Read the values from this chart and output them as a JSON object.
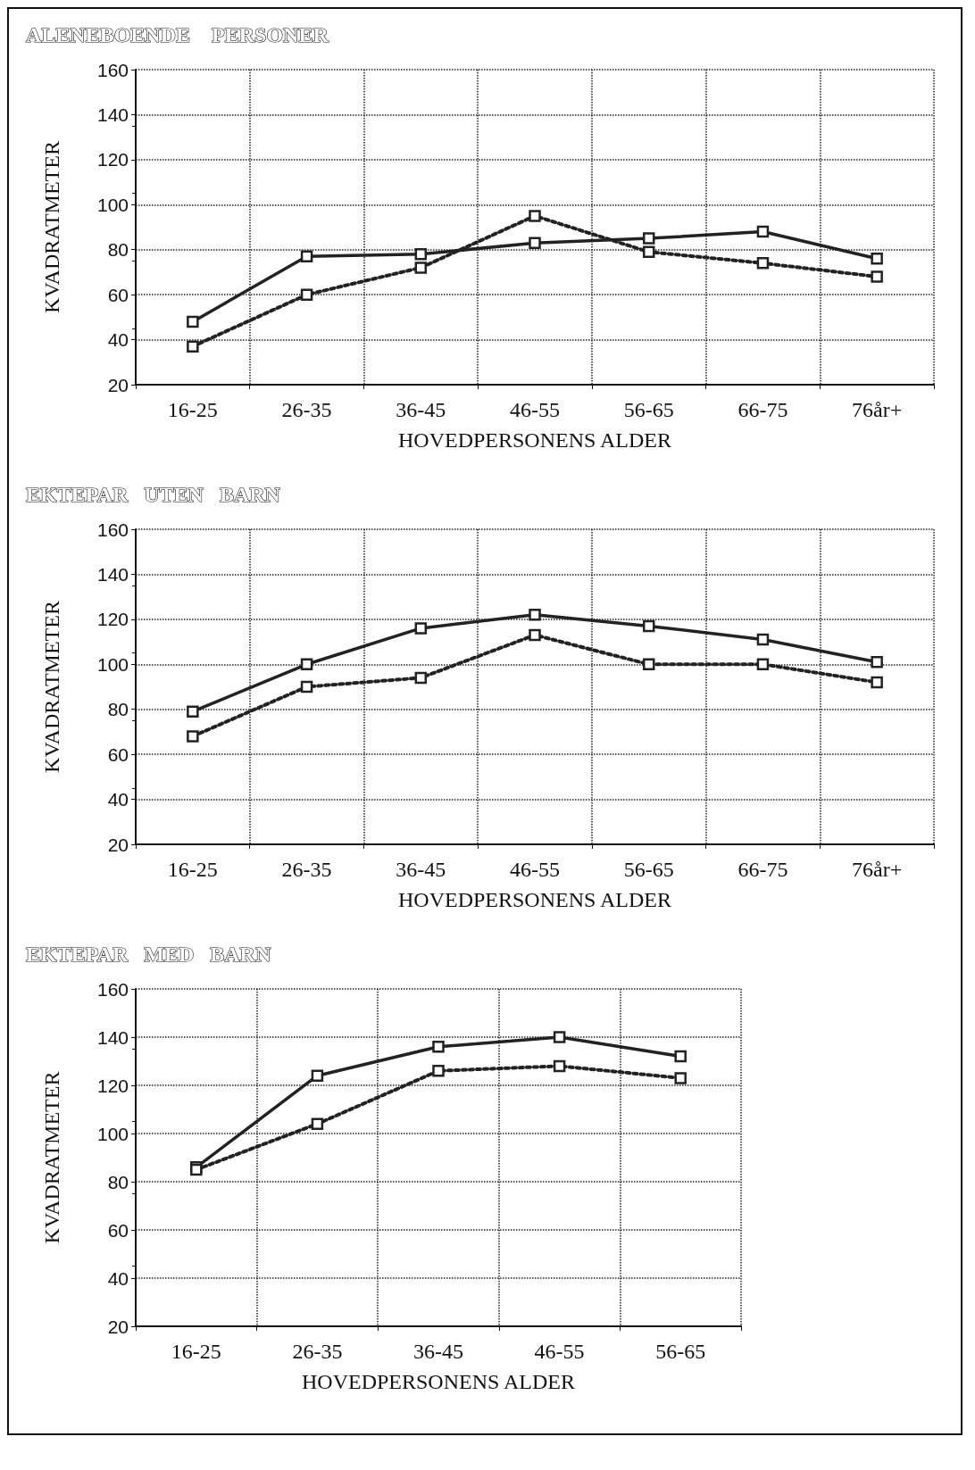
{
  "chart_data": [
    {
      "type": "line",
      "title": "ALENEBOENDE    PERSONER",
      "xlabel": "HOVEDPERSONENS ALDER",
      "ylabel": "KVADRATMETER",
      "categories": [
        "16-25",
        "26-35",
        "36-45",
        "46-55",
        "56-65",
        "66-75",
        "76år+"
      ],
      "ylim": [
        20,
        160
      ],
      "yticks": [
        20,
        40,
        60,
        80,
        100,
        120,
        140,
        160
      ],
      "grid": true,
      "marker": "square",
      "series": [
        {
          "color": "#222222",
          "line_style": "solid",
          "values": [
            48,
            77,
            78,
            83,
            85,
            88,
            76
          ]
        },
        {
          "color": "#222222",
          "line_style": "dotted",
          "values": [
            37,
            60,
            72,
            95,
            79,
            74,
            68
          ]
        }
      ]
    },
    {
      "type": "line",
      "title": "EKTEPAR   UTEN   BARN",
      "xlabel": "HOVEDPERSONENS ALDER",
      "ylabel": "KVADRATMETER",
      "categories": [
        "16-25",
        "26-35",
        "36-45",
        "46-55",
        "56-65",
        "66-75",
        "76år+"
      ],
      "ylim": [
        20,
        160
      ],
      "yticks": [
        20,
        40,
        60,
        80,
        100,
        120,
        140,
        160
      ],
      "grid": true,
      "marker": "square",
      "series": [
        {
          "color": "#222222",
          "line_style": "solid",
          "values": [
            79,
            100,
            116,
            122,
            117,
            111,
            101
          ]
        },
        {
          "color": "#222222",
          "line_style": "dotted",
          "values": [
            68,
            90,
            94,
            113,
            100,
            100,
            92
          ]
        }
      ]
    },
    {
      "type": "line",
      "title": "EKTEPAR   MED   BARN",
      "xlabel": "HOVEDPERSONENS ALDER",
      "ylabel": "KVADRATMETER",
      "categories": [
        "16-25",
        "26-35",
        "36-45",
        "46-55",
        "56-65"
      ],
      "ylim": [
        20,
        160
      ],
      "yticks": [
        20,
        40,
        60,
        80,
        100,
        120,
        140,
        160
      ],
      "grid": true,
      "marker": "square",
      "series": [
        {
          "color": "#222222",
          "line_style": "solid",
          "values": [
            86,
            124,
            136,
            140,
            132
          ]
        },
        {
          "color": "#222222",
          "line_style": "dotted",
          "values": [
            85,
            104,
            126,
            128,
            123
          ]
        }
      ]
    }
  ]
}
